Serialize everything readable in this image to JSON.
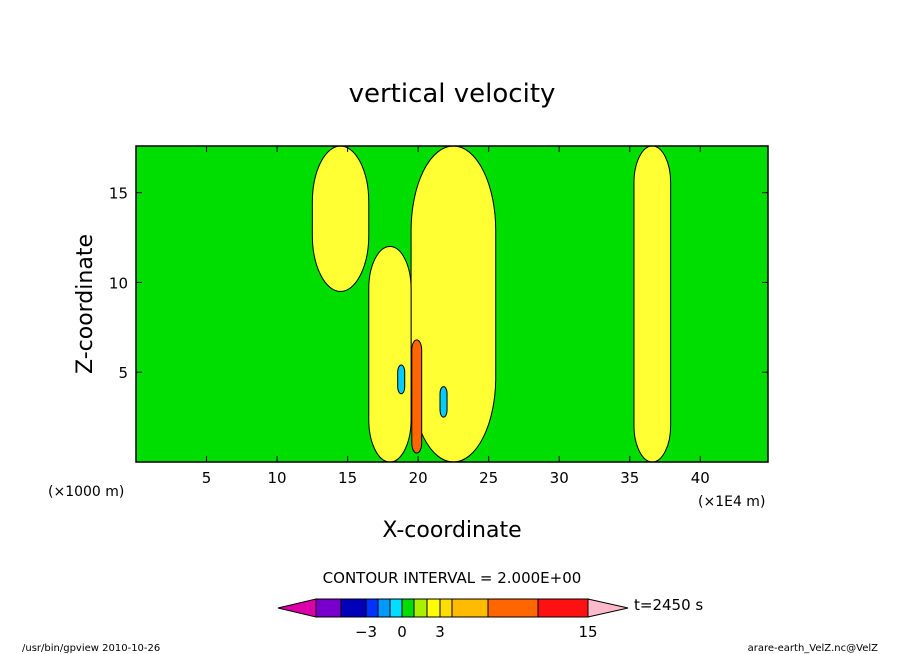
{
  "chart_data": {
    "type": "heatmap",
    "title": "vertical velocity",
    "xlabel": "X-coordinate",
    "ylabel": "Z-coordinate",
    "x_unit_left": "(×1000 m)",
    "x_unit_right": "(×1E4 m)",
    "xlim": [
      0,
      44.8
    ],
    "ylim": [
      0,
      17.6
    ],
    "xticks": [
      5,
      10,
      15,
      20,
      25,
      30,
      35,
      40
    ],
    "yticks": [
      5,
      10,
      15
    ],
    "background_level_color": "#00dd00",
    "features": [
      {
        "kind": "positive",
        "x_center": 36.6,
        "width": 2.6,
        "z_min": 0,
        "z_max": 17.6,
        "color": "#ffff33"
      },
      {
        "kind": "positive",
        "x_center": 14.5,
        "width": 4.0,
        "z_min": 9.5,
        "z_max": 17.6,
        "color": "#ffff33"
      },
      {
        "kind": "positive",
        "x_center": 22.5,
        "width": 6.0,
        "z_min": 0,
        "z_max": 17.6,
        "color": "#ffff33"
      },
      {
        "kind": "positive",
        "x_center": 18.0,
        "width": 3.0,
        "z_min": 0,
        "z_max": 12.0,
        "color": "#ffff33"
      },
      {
        "kind": "positive",
        "x_center": 19.9,
        "width": 0.7,
        "z_min": 0.5,
        "z_max": 6.8,
        "color": "#ff6600"
      },
      {
        "kind": "negative",
        "x_center": 18.8,
        "width": 0.5,
        "z_min": 3.8,
        "z_max": 5.4,
        "color": "#00ccff"
      },
      {
        "kind": "negative",
        "x_center": 21.8,
        "width": 0.5,
        "z_min": 2.5,
        "z_max": 4.2,
        "color": "#00ccff"
      }
    ],
    "colorbar": {
      "colors": [
        "#dd00aa",
        "#7700cc",
        "#0000bb",
        "#0033ff",
        "#0099ff",
        "#00ddff",
        "#00dd00",
        "#aaee00",
        "#ffff00",
        "#ffdd00",
        "#ffbb00",
        "#ff6600",
        "#ff1111",
        "#ff7777",
        "#ffbbcc"
      ],
      "labels": [
        "−3",
        "0",
        "3",
        "15"
      ]
    }
  },
  "contour_interval": "CONTOUR INTERVAL = 2.000E+00",
  "time_label": "t=2450  s",
  "footer_left": "/usr/bin/gpview  2010-10-26",
  "footer_right": "arare-earth_VelZ.nc@VelZ"
}
